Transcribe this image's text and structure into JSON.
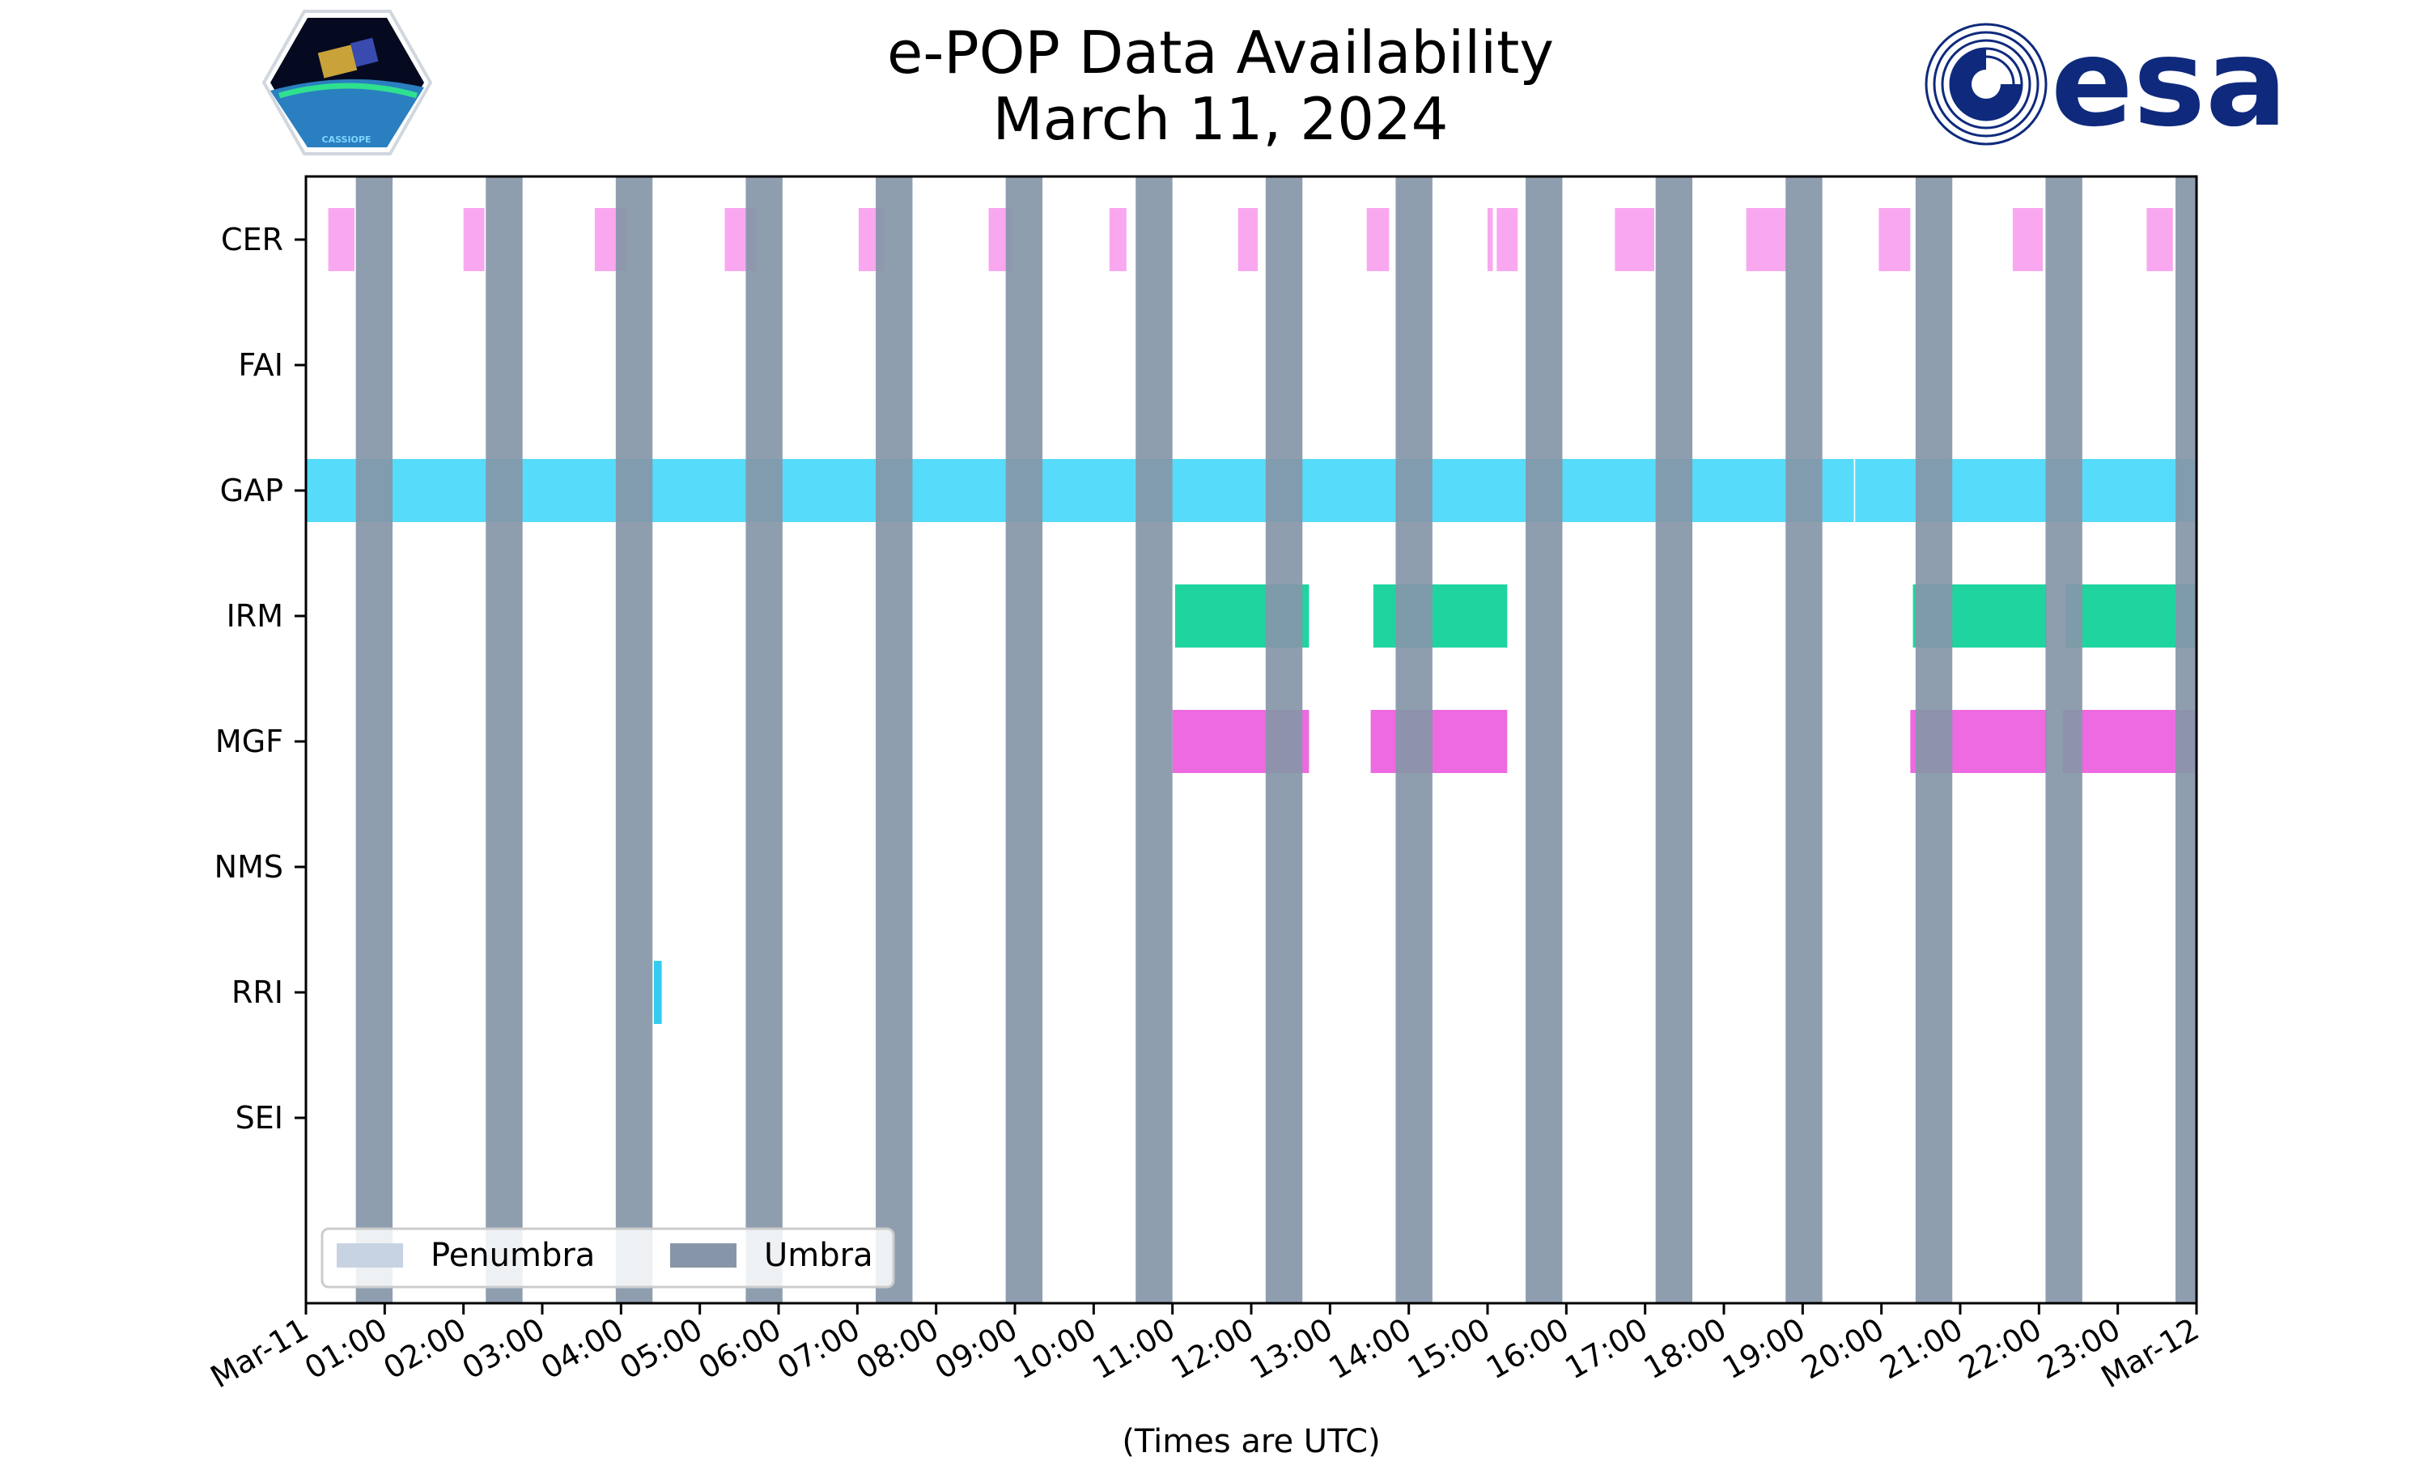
{
  "header": {
    "title_line1": "e-POP Data Availability",
    "title_line2": "March 11, 2024",
    "logo_left_text": "CASSIOPE",
    "logo_right_text": "esa"
  },
  "chart_data": {
    "type": "timeline",
    "date": "2024-03-11",
    "x_range": [
      "Mar-11 00:00",
      "Mar-12 00:00"
    ],
    "xlabel": "(Times are UTC)",
    "x_ticks": [
      "Mar-11",
      "01:00",
      "02:00",
      "03:00",
      "04:00",
      "05:00",
      "06:00",
      "07:00",
      "08:00",
      "09:00",
      "10:00",
      "11:00",
      "12:00",
      "13:00",
      "14:00",
      "15:00",
      "16:00",
      "17:00",
      "18:00",
      "19:00",
      "20:00",
      "21:00",
      "22:00",
      "23:00",
      "Mar-12"
    ],
    "instruments": [
      "CER",
      "FAI",
      "GAP",
      "IRM",
      "MGF",
      "NMS",
      "RRI",
      "SEI"
    ],
    "instrument_colors": {
      "CER": "#f9a8f0",
      "FAI": "#b0b0b0",
      "GAP": "#56dcfa",
      "IRM": "#20d4a0",
      "MGF": "#ee6ae0",
      "NMS": "#b0b0b0",
      "RRI": "#33ccee",
      "SEI": "#b0b0b0"
    },
    "availability": {
      "CER": [
        [
          "00:17",
          "00:37"
        ],
        [
          "02:00",
          "02:16"
        ],
        [
          "03:40",
          "04:04"
        ],
        [
          "05:19",
          "05:43"
        ],
        [
          "07:01",
          "07:20"
        ],
        [
          "08:40",
          "08:58"
        ],
        [
          "10:12",
          "10:25"
        ],
        [
          "11:50",
          "12:05"
        ],
        [
          "13:28",
          "13:45"
        ],
        [
          "15:00",
          "15:04"
        ],
        [
          "15:07",
          "15:23"
        ],
        [
          "16:37",
          "17:07"
        ],
        [
          "18:17",
          "18:48"
        ],
        [
          "19:58",
          "20:22"
        ],
        [
          "21:40",
          "22:03"
        ],
        [
          "23:22",
          "23:42"
        ]
      ],
      "FAI": [],
      "GAP": [
        [
          "00:00",
          "19:39"
        ],
        [
          "19:40",
          "24:00"
        ]
      ],
      "IRM": [
        [
          "11:02",
          "12:44"
        ],
        [
          "13:33",
          "15:15"
        ],
        [
          "20:24",
          "22:06"
        ],
        [
          "22:20",
          "24:00"
        ]
      ],
      "MGF": [
        [
          "11:00",
          "12:44"
        ],
        [
          "13:31",
          "15:15"
        ],
        [
          "20:22",
          "22:06"
        ],
        [
          "22:18",
          "24:00"
        ]
      ],
      "NMS": [],
      "RRI": [
        [
          "04:25",
          "04:31"
        ]
      ],
      "SEI": []
    },
    "umbra": [
      [
        "00:38",
        "01:06"
      ],
      [
        "02:17",
        "02:45"
      ],
      [
        "03:56",
        "04:24"
      ],
      [
        "05:35",
        "06:03"
      ],
      [
        "07:14",
        "07:42"
      ],
      [
        "08:53",
        "09:21"
      ],
      [
        "10:32",
        "11:00"
      ],
      [
        "12:11",
        "12:39"
      ],
      [
        "13:50",
        "14:18"
      ],
      [
        "15:29",
        "15:57"
      ],
      [
        "17:08",
        "17:36"
      ],
      [
        "18:47",
        "19:15"
      ],
      [
        "20:26",
        "20:54"
      ],
      [
        "22:05",
        "22:33"
      ],
      [
        "23:44",
        "24:00"
      ]
    ],
    "penumbra": [],
    "eclipse_colors": {
      "Penumbra": "#c7d3e3",
      "Umbra": "#8696a8"
    },
    "legend": {
      "position": "lower-left",
      "entries": [
        "Penumbra",
        "Umbra"
      ]
    },
    "grid": false
  }
}
